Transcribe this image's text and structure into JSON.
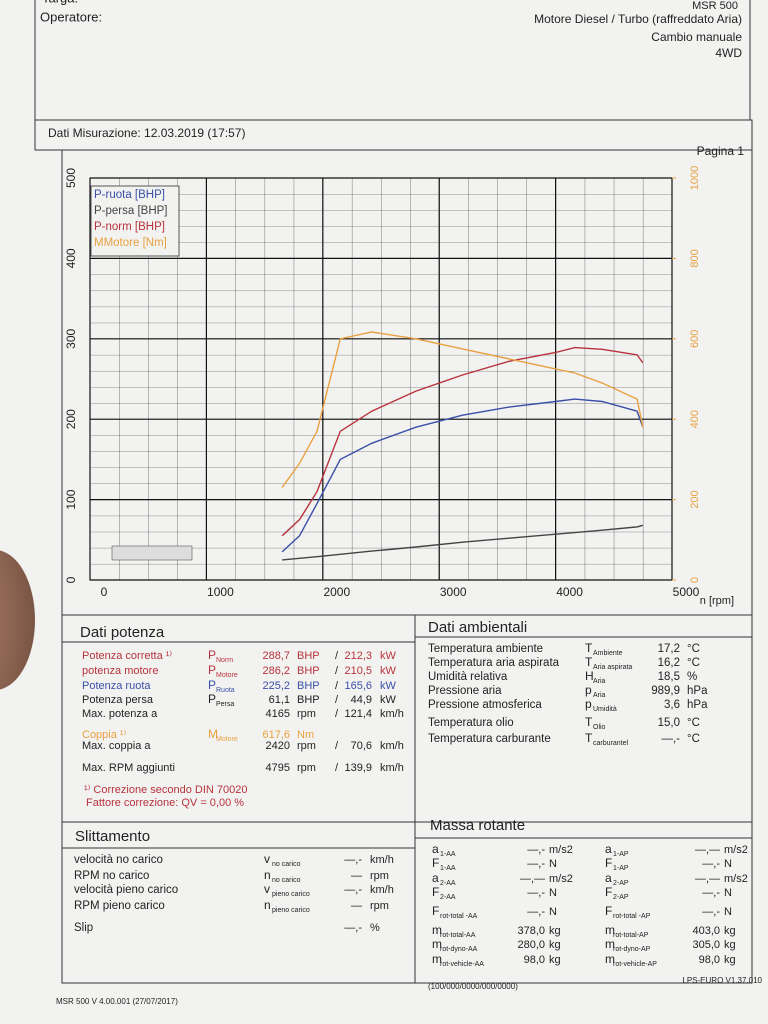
{
  "header": {
    "targa": "Targa:",
    "operatore": "Operatore:",
    "device": "MSR 500",
    "engine": "Motore Diesel / Turbo (raffreddato Aria)",
    "gearbox": "Cambio manuale",
    "drive": "4WD",
    "measurement": "Dati Misurazione: 12.03.2019 (17:57)",
    "page": "Pagina 1"
  },
  "chart_data": {
    "type": "line",
    "x": [
      1650,
      1800,
      1950,
      2150,
      2420,
      2800,
      3200,
      3600,
      4000,
      4165,
      4400,
      4700,
      4750
    ],
    "series": [
      {
        "name": "P-ruota [BHP]",
        "color": "#3a4fa8",
        "values": [
          35,
          55,
          95,
          150,
          170,
          190,
          205,
          215,
          222,
          225,
          222,
          210,
          190
        ]
      },
      {
        "name": "P-persa [BHP]",
        "color": "#444444",
        "values": [
          25,
          27,
          29,
          32,
          36,
          41,
          47,
          52,
          57,
          59,
          62,
          66,
          68
        ]
      },
      {
        "name": "P-norm [BHP]",
        "color": "#b8323c",
        "values": [
          55,
          75,
          110,
          185,
          210,
          235,
          255,
          272,
          283,
          289,
          287,
          280,
          270
        ]
      },
      {
        "name": "MMotore [Nm]",
        "color": "#e8a040",
        "axis": "y2",
        "values": [
          230,
          290,
          370,
          600,
          617,
          600,
          575,
          550,
          525,
          515,
          490,
          450,
          380
        ]
      }
    ],
    "xlabel": "n [rpm]",
    "xlim": [
      0,
      5000
    ],
    "xticks": [
      0,
      1000,
      2000,
      3000,
      4000,
      5000
    ],
    "ylim": [
      0,
      500
    ],
    "yticks": [
      0,
      100,
      200,
      300,
      400,
      500
    ],
    "y2lim": [
      0,
      1000
    ],
    "y2ticks": [
      0,
      200,
      400,
      600,
      800,
      1000
    ],
    "grid": true,
    "legend": "upper left"
  },
  "potenza": {
    "title": "Dati potenza",
    "rows": [
      {
        "label": "Potenza corretta ¹⁾",
        "sym": "P",
        "sub": "Norm",
        "v1": "288,7",
        "u1": "BHP",
        "v2": "212,3",
        "u2": "kW",
        "color": "#b8323c"
      },
      {
        "label": "potenza motore",
        "sym": "P",
        "sub": "Motore",
        "v1": "286,2",
        "u1": "BHP",
        "v2": "210,5",
        "u2": "kW",
        "color": "#b8323c"
      },
      {
        "label": "Potenza ruota",
        "sym": "P",
        "sub": "Ruota",
        "v1": "225,2",
        "u1": "BHP",
        "v2": "165,6",
        "u2": "kW",
        "color": "#3a4fa8"
      },
      {
        "label": "Potenza persa",
        "sym": "P",
        "sub": "Persa",
        "v1": "61,1",
        "u1": "BHP",
        "v2": "44,9",
        "u2": "kW"
      },
      {
        "label": "Max. potenza a",
        "v1": "4165",
        "u1": "rpm",
        "v2": "121,4",
        "u2": "km/h"
      },
      {
        "label": "Coppia ¹⁾",
        "sym": "M",
        "sub": "Motore",
        "v1": "617,6",
        "u1": "Nm",
        "color": "#e8a040"
      },
      {
        "label": "Max. coppia a",
        "v1": "2420",
        "u1": "rpm",
        "v2": "70,6",
        "u2": "km/h"
      },
      {
        "label": "Max. RPM aggiunti",
        "v1": "4795",
        "u1": "rpm",
        "v2": "139,9",
        "u2": "km/h"
      }
    ],
    "note1": "¹⁾ Correzione secondo DIN 70020",
    "note2": "Fattore correzione: QV = 0,00 %"
  },
  "ambientali": {
    "title": "Dati ambientali",
    "rows": [
      {
        "label": "Temperatura ambiente",
        "sym": "T",
        "sub": "Ambiente",
        "value": "17,2",
        "unit": "°C"
      },
      {
        "label": "Temperatura aria aspirata",
        "sym": "T",
        "sub": "Aria aspirata",
        "value": "16,2",
        "unit": "°C"
      },
      {
        "label": "Umidità relativa",
        "sym": "H",
        "sub": "Aria",
        "value": "18,5",
        "unit": "%"
      },
      {
        "label": "Pressione aria",
        "sym": "p",
        "sub": "Aria",
        "value": "989,9",
        "unit": "hPa"
      },
      {
        "label": "Pressione atmosferica",
        "sym": "p",
        "sub": "Umidità",
        "value": "3,6",
        "unit": "hPa"
      },
      {
        "label": "Temperatura olio",
        "sym": "T",
        "sub": "Olio",
        "value": "15,0",
        "unit": "°C"
      },
      {
        "label": "Temperatura carburante",
        "sym": "T",
        "sub": "carburantel",
        "value": "—,-",
        "unit": "°C"
      }
    ]
  },
  "slittamento": {
    "title": "Slittamento",
    "rows": [
      {
        "label": "velocità no carico",
        "sym": "v",
        "sub": "no carico",
        "value": "—,-",
        "unit": "km/h"
      },
      {
        "label": "RPM no carico",
        "sym": "n",
        "sub": "no carico",
        "value": "—",
        "unit": "rpm"
      },
      {
        "label": "velocità pieno carico",
        "sym": "v",
        "sub": "pieno carico",
        "value": "—,-",
        "unit": "km/h"
      },
      {
        "label": "RPM pieno carico",
        "sym": "n",
        "sub": "pieno carico",
        "value": "—",
        "unit": "rpm"
      },
      {
        "label": "Slip",
        "value": "—,-",
        "unit": "%"
      }
    ]
  },
  "massa": {
    "title": "Massa rotante",
    "rows": [
      [
        {
          "sym": "a",
          "sub": "1-AA",
          "value": "—,-",
          "unit": "m/s2"
        },
        {
          "sym": "a",
          "sub": "1-AP",
          "value": "—,—",
          "unit": "m/s2"
        }
      ],
      [
        {
          "sym": "F",
          "sub": "1-AA",
          "value": "—,-",
          "unit": "N"
        },
        {
          "sym": "F",
          "sub": "1-AP",
          "value": "—,-",
          "unit": "N"
        }
      ],
      [
        {
          "sym": "a",
          "sub": "2-AA",
          "value": "—,—",
          "unit": "m/s2"
        },
        {
          "sym": "a",
          "sub": "2-AP",
          "value": "—,—",
          "unit": "m/s2"
        }
      ],
      [
        {
          "sym": "F",
          "sub": "2-AA",
          "value": "—,-",
          "unit": "N"
        },
        {
          "sym": "F",
          "sub": "2-AP",
          "value": "—,-",
          "unit": "N"
        }
      ],
      [
        {
          "sym": "F",
          "sub": "rot-total -AA",
          "value": "—,-",
          "unit": "N"
        },
        {
          "sym": "F",
          "sub": "rot-total -AP",
          "value": "—,-",
          "unit": "N"
        }
      ],
      [
        {
          "sym": "m",
          "sub": "rot-total-AA",
          "value": "378,0",
          "unit": "kg"
        },
        {
          "sym": "m",
          "sub": "rot-total-AP",
          "value": "403,0",
          "unit": "kg"
        }
      ],
      [
        {
          "sym": "m",
          "sub": "rot-dyno-AA",
          "value": "280,0",
          "unit": "kg"
        },
        {
          "sym": "m",
          "sub": "rot-dyno-AP",
          "value": "305,0",
          "unit": "kg"
        }
      ],
      [
        {
          "sym": "m",
          "sub": "rot-vehicle-AA",
          "value": "98,0",
          "unit": "kg"
        },
        {
          "sym": "m",
          "sub": "rot-vehicle-AP",
          "value": "98,0",
          "unit": "kg"
        }
      ]
    ]
  },
  "footer": {
    "code": "(100/000/0000/000/0000)",
    "version": "LPS-EURO V1.37.010",
    "software": "MSR 500 V 4.00.001 (27/07/2017)"
  }
}
